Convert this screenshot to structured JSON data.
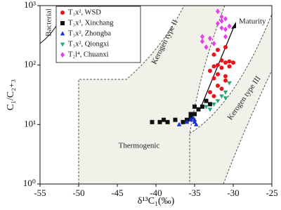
{
  "chart_data": {
    "type": "scatter",
    "x_label": "δ¹³C₁(‰)",
    "y_label": "C₁/C₂₊₃",
    "xlim": [
      -55,
      -25
    ],
    "xticks": [
      -55,
      -50,
      -45,
      -40,
      -35,
      -30,
      -25
    ],
    "ylim": [
      1,
      1000
    ],
    "yticks": [
      {
        "value": 1,
        "label": "10⁰"
      },
      {
        "value": 10,
        "label": "10¹"
      },
      {
        "value": 100,
        "label": "10²"
      },
      {
        "value": 1000,
        "label": "10³"
      }
    ],
    "log_y": true,
    "legend": "upper left",
    "annotations": [
      "Bacterial",
      "Kerogen type II",
      "Kerogen type III",
      "Thermogenic",
      "Maturity"
    ],
    "series": [
      {
        "name": "T₃x², WSD",
        "color": "#e8141c",
        "marker": "circle",
        "x": [
          -32.5,
          -32,
          -31.5,
          -31,
          -32,
          -31,
          -30.5,
          -30,
          -31.5,
          -32.5,
          -33,
          -32,
          -31,
          -32.5,
          -32,
          -31.5,
          -33,
          -32.5,
          -31,
          -30.5
        ],
        "values": [
          150,
          180,
          120,
          200,
          100,
          110,
          115,
          110,
          90,
          95,
          80,
          70,
          65,
          60,
          45,
          40,
          35,
          30,
          55,
          95
        ]
      },
      {
        "name": "T₃x³, Xinchang",
        "color": "#111111",
        "marker": "square",
        "x": [
          -40.5,
          -39.5,
          -39,
          -38.5,
          -37.5,
          -36.5,
          -36,
          -35.5,
          -35,
          -34.5,
          -35,
          -34,
          -33.5,
          -33,
          -35.5
        ],
        "values": [
          11,
          11,
          12,
          11,
          12,
          11,
          12,
          13,
          15,
          18,
          20,
          20,
          25,
          22,
          15
        ]
      },
      {
        "name": "T₃x², Zhongba",
        "color": "#1a2fd8",
        "marker": "triangle",
        "x": [
          -37,
          -36,
          -35.5,
          -35,
          -35.2,
          -34.8,
          -35
        ],
        "values": [
          10,
          11,
          12,
          12,
          13,
          10,
          11
        ]
      },
      {
        "name": "T₃x², Qiongxi",
        "color": "#2aa876",
        "marker": "triangle-down",
        "x": [
          -33.5,
          -32.5,
          -32,
          -31.5,
          -31,
          -30.5,
          -31,
          -33
        ],
        "values": [
          20,
          22,
          25,
          30,
          35,
          50,
          28,
          18
        ]
      },
      {
        "name": "T₂l⁴, Chuanxi",
        "color": "#e83ee8",
        "marker": "diamond",
        "x": [
          -32,
          -31.5,
          -31,
          -32,
          -31.5,
          -31,
          -31,
          -30.5,
          -33,
          -34,
          -34,
          -33.5,
          -32.5,
          -31.5
        ],
        "values": [
          800,
          650,
          600,
          500,
          420,
          400,
          300,
          450,
          280,
          300,
          250,
          200,
          230,
          550
        ]
      }
    ]
  }
}
